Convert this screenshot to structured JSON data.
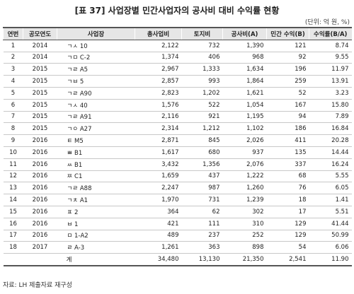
{
  "header": {
    "title": "[표 37] 사업장별 민간사업자의 공사비 대비 수익률 현황",
    "unit": "(단위: 억 원, %)"
  },
  "table": {
    "columns": [
      "연번",
      "공모연도",
      "사업장",
      "총사업비",
      "토지비",
      "공사비(A)",
      "민간 수익(B)",
      "수익률(B/A)"
    ],
    "rows": [
      [
        "1",
        "2014",
        "ㄱㅅ 10",
        "2,122",
        "732",
        "1,390",
        "121",
        "8.74"
      ],
      [
        "2",
        "2014",
        "ㄱㅁ C-2",
        "1,374",
        "406",
        "968",
        "92",
        "9.55"
      ],
      [
        "3",
        "2015",
        "ㄱㄹ A5",
        "2,967",
        "1,333",
        "1,634",
        "196",
        "11.97"
      ],
      [
        "4",
        "2015",
        "ㄱㅂ 5",
        "2,857",
        "993",
        "1,864",
        "259",
        "13.91"
      ],
      [
        "5",
        "2015",
        "ㄱㄹ A90",
        "2,823",
        "1,202",
        "1,621",
        "52",
        "3.23"
      ],
      [
        "6",
        "2015",
        "ㄱㅅ 40",
        "1,576",
        "522",
        "1,054",
        "167",
        "15.80"
      ],
      [
        "7",
        "2015",
        "ㄱㄹ A91",
        "2,116",
        "921",
        "1,195",
        "94",
        "7.89"
      ],
      [
        "8",
        "2015",
        "ㄱㅇ A27",
        "2,314",
        "1,212",
        "1,102",
        "186",
        "16.84"
      ],
      [
        "9",
        "2016",
        "ㅌ M5",
        "2,871",
        "845",
        "2,026",
        "411",
        "20.28"
      ],
      [
        "10",
        "2016",
        "ㅃ B1",
        "1,617",
        "680",
        "937",
        "135",
        "14.44"
      ],
      [
        "11",
        "2016",
        "ㅆ B1",
        "3,432",
        "1,356",
        "2,076",
        "337",
        "16.24"
      ],
      [
        "12",
        "2016",
        "ㅉ C1",
        "1,659",
        "437",
        "1,222",
        "68",
        "5.55"
      ],
      [
        "13",
        "2016",
        "ㄱㄹ A88",
        "2,247",
        "987",
        "1,260",
        "76",
        "6.05"
      ],
      [
        "14",
        "2016",
        "ㄱㅊ A1",
        "1,970",
        "731",
        "1,239",
        "18",
        "1.41"
      ],
      [
        "15",
        "2016",
        "ㅍ 2",
        "364",
        "62",
        "302",
        "17",
        "5.51"
      ],
      [
        "16",
        "2016",
        "ㅂ 1",
        "421",
        "111",
        "310",
        "129",
        "41.44"
      ],
      [
        "17",
        "2016",
        "ㅁ 1-A2",
        "489",
        "237",
        "252",
        "129",
        "50.99"
      ],
      [
        "18",
        "2017",
        "ㄹ A-3",
        "1,261",
        "363",
        "898",
        "54",
        "6.06"
      ]
    ],
    "total": [
      "계",
      "34,480",
      "13,130",
      "21,350",
      "2,541",
      "11.90"
    ]
  },
  "footer": {
    "source": "자료: LH 제출자료 재구성"
  }
}
